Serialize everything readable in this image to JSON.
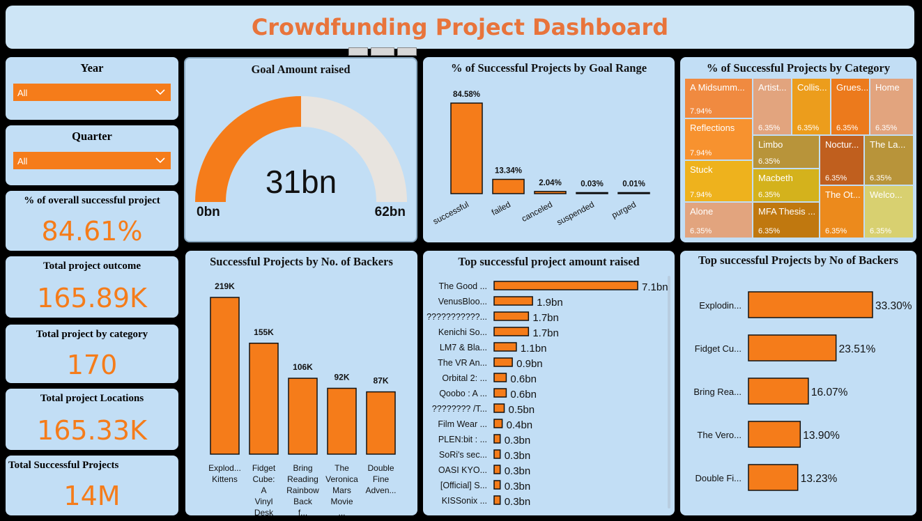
{
  "title": "Crowdfunding Project Dashboard",
  "slicers": {
    "year": {
      "label": "Year",
      "value": "All"
    },
    "quarter": {
      "label": "Quarter",
      "value": "All"
    }
  },
  "kpis": [
    {
      "label": "% of overall successful project",
      "value": "84.61%"
    },
    {
      "label": "Total project outcome",
      "value": "165.89K"
    },
    {
      "label": "Total project by category",
      "value": "170"
    },
    {
      "label": "Total project Locations",
      "value": "165.33K"
    },
    {
      "label": "Total Successful Projects",
      "value": "14M"
    }
  ],
  "gauge": {
    "title": "Goal Amount raised",
    "value_label": "31bn",
    "min_label": "0bn",
    "max_label": "62bn",
    "value": 31,
    "max": 62,
    "fill_color": "#f57c1a",
    "track_color": "#e8e4df"
  },
  "colors": {
    "accent": "#f57c1a",
    "title": "#e8743b",
    "card": "#c2def5"
  },
  "chart_data": [
    {
      "type": "bar",
      "title": "% of Successful Projects by Goal Range",
      "categories": [
        "successful",
        "failed",
        "canceled",
        "suspended",
        "purged"
      ],
      "values": [
        84.58,
        13.34,
        2.04,
        0.03,
        0.01
      ],
      "labels": [
        "84.58%",
        "13.34%",
        "2.04%",
        "0.03%",
        "0.01%"
      ]
    },
    {
      "type": "treemap",
      "title": "% of Successful Projects by Category",
      "cells": [
        {
          "label": "A Midsumm...",
          "pct": "7.94%",
          "color": "#f08a40"
        },
        {
          "label": "Reflections",
          "pct": "7.94%",
          "color": "#f7922f"
        },
        {
          "label": "Stuck",
          "pct": "7.94%",
          "color": "#eeb21d"
        },
        {
          "label": "Alone",
          "pct": "6.35%",
          "color": "#e2a47e"
        },
        {
          "label": "Artist...",
          "pct": "6.35%",
          "color": "#e2a47e"
        },
        {
          "label": "Collis...",
          "pct": "6.35%",
          "color": "#ec9d1c"
        },
        {
          "label": "Grues...",
          "pct": "6.35%",
          "color": "#ec7a1c"
        },
        {
          "label": "Home",
          "pct": "6.35%",
          "color": "#e2a47e"
        },
        {
          "label": "Limbo",
          "pct": "6.35%",
          "color": "#b8943a"
        },
        {
          "label": "Noctur...",
          "pct": "6.35%",
          "color": "#c05f1e"
        },
        {
          "label": "The La...",
          "pct": "6.35%",
          "color": "#b8943a"
        },
        {
          "label": "Macbeth",
          "pct": "6.35%",
          "color": "#d4b21c"
        },
        {
          "label": "The Ot...",
          "pct": "6.35%",
          "color": "#ec8a1c"
        },
        {
          "label": "Welco...",
          "pct": "6.35%",
          "color": "#d8d070"
        },
        {
          "label": "MFA Thesis ...",
          "pct": "6.35%",
          "color": "#c0780f"
        }
      ]
    },
    {
      "type": "bar",
      "title": "Successful Projects by No. of Backers",
      "categories": [
        "Explod... Kittens",
        "Fidget Cube: A Vinyl Desk T...",
        "Bring Reading Rainbow Back f...",
        "The Veronica Mars Movie ...",
        "Double Fine Adven..."
      ],
      "values": [
        219,
        155,
        106,
        92,
        87
      ],
      "labels": [
        "219K",
        "155K",
        "106K",
        "92K",
        "87K"
      ]
    },
    {
      "type": "bar",
      "title": "Top successful project amount raised",
      "categories": [
        "The Good ...",
        "VenusBloo...",
        "???????????...",
        "Kenichi So...",
        "LM7 & Bla...",
        "The VR An...",
        "Orbital 2: ...",
        "Qoobo : A ...",
        "???????? /T...",
        "Film Wear ...",
        "PLEN:bit : ...",
        "SoRi's sec...",
        "OASI KYO...",
        "[Official] S...",
        "KISSonix ..."
      ],
      "values": [
        7.1,
        1.9,
        1.7,
        1.7,
        1.1,
        0.9,
        0.6,
        0.6,
        0.5,
        0.4,
        0.3,
        0.3,
        0.3,
        0.3,
        0.3
      ],
      "labels": [
        "7.1bn",
        "1.9bn",
        "1.7bn",
        "1.7bn",
        "1.1bn",
        "0.9bn",
        "0.6bn",
        "0.6bn",
        "0.5bn",
        "0.4bn",
        "0.3bn",
        "0.3bn",
        "0.3bn",
        "0.3bn",
        "0.3bn"
      ]
    },
    {
      "type": "bar",
      "title": "Top successful Projects by No of Backers",
      "categories": [
        "Explodin...",
        "Fidget Cu...",
        "Bring Rea...",
        "The Vero...",
        "Double Fi..."
      ],
      "values": [
        33.3,
        23.51,
        16.07,
        13.9,
        13.23
      ],
      "labels": [
        "33.30%",
        "23.51%",
        "16.07%",
        "13.90%",
        "13.23%"
      ]
    }
  ]
}
